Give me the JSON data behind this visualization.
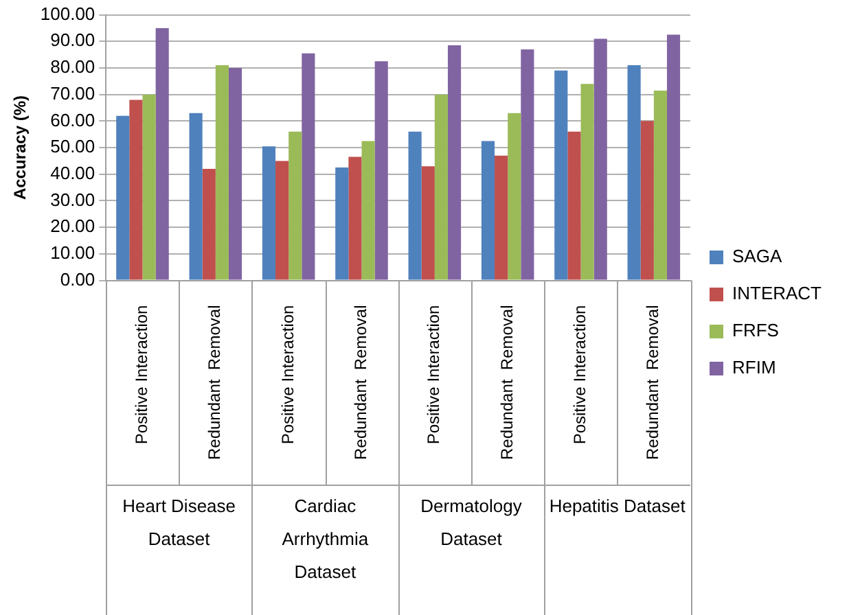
{
  "chart_data": {
    "type": "bar",
    "ylabel": "Accuracy (%)",
    "categories": [
      "Positive Interaction",
      "Redundant  Removal",
      "Positive Interaction",
      "Redundant  Removal",
      "Positive Interaction",
      "Redundant  Removal",
      "Positive Interaction",
      "Redundant  Removal"
    ],
    "annotations": [
      "Heart Disease Dataset",
      "Cardiac Arrhythmia Dataset",
      "Dermatology Dataset",
      "Hepatitis Dataset"
    ],
    "series": [
      {
        "name": "SAGA",
        "color": "#4f81bd",
        "values": [
          62,
          63,
          50.5,
          42.5,
          56,
          52.5,
          79,
          81
        ]
      },
      {
        "name": "INTERACT",
        "color": "#c0504d",
        "values": [
          68,
          42,
          45,
          46.5,
          43,
          47,
          56,
          60
        ]
      },
      {
        "name": "FRFS",
        "color": "#9bbb59",
        "values": [
          70,
          81,
          56,
          52.5,
          70,
          63,
          74,
          71.5
        ]
      },
      {
        "name": "RFIM",
        "color": "#8064a2",
        "values": [
          95,
          80,
          85.5,
          82.5,
          88.5,
          87,
          91,
          92.5
        ]
      }
    ],
    "ylim": [
      0,
      100
    ],
    "yticks": [
      {
        "value": 0,
        "label": "0.00"
      },
      {
        "value": 10,
        "label": "10.00"
      },
      {
        "value": 20,
        "label": "20.00"
      },
      {
        "value": 30,
        "label": "30.00"
      },
      {
        "value": 40,
        "label": "40.00"
      },
      {
        "value": 50,
        "label": "50.00"
      },
      {
        "value": 60,
        "label": "60.00"
      },
      {
        "value": 70,
        "label": "70.00"
      },
      {
        "value": 80,
        "label": "80.00"
      },
      {
        "value": 90,
        "label": "90.00"
      },
      {
        "value": 100,
        "label": "100.00"
      }
    ],
    "grid": "y",
    "legend": "right"
  }
}
